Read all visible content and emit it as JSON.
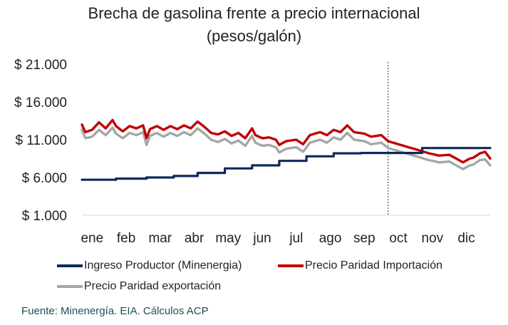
{
  "chart_data": {
    "type": "line",
    "title": "Brecha de gasolina frente a precio internacional",
    "subtitle": "(pesos/galón)",
    "ylim": [
      1000,
      21000
    ],
    "yticks": [
      {
        "value": 1000,
        "label": "$ 1.000"
      },
      {
        "value": 6000,
        "label": "$ 6.000"
      },
      {
        "value": 11000,
        "label": "$ 11.000"
      },
      {
        "value": 16000,
        "label": "$ 16.000"
      },
      {
        "value": 21000,
        "label": "$ 21.000"
      }
    ],
    "xlabels": [
      "ene",
      "feb",
      "mar",
      "abr",
      "may",
      "jun",
      "jul",
      "ago",
      "sep",
      "oct",
      "nov",
      "dic"
    ],
    "x_range": [
      0,
      12
    ],
    "marker_x": 9.0,
    "series": [
      {
        "name": "Ingreso Productor (Minenergia)",
        "color": "#0e2a5c",
        "points": [
          [
            0.0,
            5700
          ],
          [
            1.0,
            5700
          ],
          [
            1.0,
            5850
          ],
          [
            1.9,
            5850
          ],
          [
            1.9,
            6000
          ],
          [
            2.7,
            6000
          ],
          [
            2.7,
            6200
          ],
          [
            3.4,
            6200
          ],
          [
            3.4,
            6600
          ],
          [
            4.2,
            6600
          ],
          [
            4.2,
            7200
          ],
          [
            5.0,
            7200
          ],
          [
            5.0,
            7600
          ],
          [
            5.8,
            7600
          ],
          [
            5.8,
            8200
          ],
          [
            6.6,
            8200
          ],
          [
            6.6,
            8800
          ],
          [
            7.4,
            8800
          ],
          [
            7.4,
            9200
          ],
          [
            8.2,
            9200
          ],
          [
            8.2,
            9250
          ],
          [
            10.0,
            9250
          ],
          [
            10.0,
            9900
          ],
          [
            12.0,
            9900
          ]
        ]
      },
      {
        "name": "Precio Paridad Importación",
        "color": "#c00000",
        "points": [
          [
            0.0,
            13000
          ],
          [
            0.1,
            12000
          ],
          [
            0.3,
            12300
          ],
          [
            0.5,
            13300
          ],
          [
            0.7,
            12500
          ],
          [
            0.9,
            13600
          ],
          [
            1.0,
            12800
          ],
          [
            1.2,
            12100
          ],
          [
            1.4,
            12800
          ],
          [
            1.6,
            12500
          ],
          [
            1.8,
            12900
          ],
          [
            1.9,
            11200
          ],
          [
            2.0,
            12400
          ],
          [
            2.2,
            12800
          ],
          [
            2.4,
            12300
          ],
          [
            2.6,
            12800
          ],
          [
            2.8,
            12400
          ],
          [
            3.0,
            12900
          ],
          [
            3.2,
            12500
          ],
          [
            3.4,
            13400
          ],
          [
            3.6,
            12700
          ],
          [
            3.8,
            11900
          ],
          [
            4.0,
            11700
          ],
          [
            4.2,
            12100
          ],
          [
            4.4,
            11500
          ],
          [
            4.6,
            11900
          ],
          [
            4.8,
            11200
          ],
          [
            5.0,
            12500
          ],
          [
            5.1,
            11600
          ],
          [
            5.3,
            11200
          ],
          [
            5.5,
            11300
          ],
          [
            5.7,
            11000
          ],
          [
            5.8,
            10300
          ],
          [
            6.0,
            10800
          ],
          [
            6.3,
            11000
          ],
          [
            6.5,
            10400
          ],
          [
            6.7,
            11600
          ],
          [
            7.0,
            12000
          ],
          [
            7.2,
            11600
          ],
          [
            7.4,
            12300
          ],
          [
            7.6,
            12000
          ],
          [
            7.8,
            12900
          ],
          [
            8.0,
            12000
          ],
          [
            8.3,
            11800
          ],
          [
            8.5,
            11400
          ],
          [
            8.8,
            11600
          ],
          [
            9.0,
            10800
          ],
          [
            9.3,
            10400
          ],
          [
            9.6,
            10000
          ],
          [
            9.9,
            9600
          ],
          [
            10.2,
            9200
          ],
          [
            10.5,
            8900
          ],
          [
            10.8,
            9000
          ],
          [
            11.0,
            8500
          ],
          [
            11.2,
            8000
          ],
          [
            11.4,
            8500
          ],
          [
            11.5,
            8600
          ],
          [
            11.7,
            9200
          ],
          [
            11.85,
            9400
          ],
          [
            12.0,
            8500
          ]
        ]
      },
      {
        "name": "Precio Paridad exportación",
        "color": "#a6a6a6",
        "points": [
          [
            0.0,
            12300
          ],
          [
            0.1,
            11200
          ],
          [
            0.3,
            11400
          ],
          [
            0.5,
            12300
          ],
          [
            0.7,
            11600
          ],
          [
            0.9,
            12600
          ],
          [
            1.0,
            11800
          ],
          [
            1.2,
            11200
          ],
          [
            1.4,
            11900
          ],
          [
            1.6,
            11600
          ],
          [
            1.8,
            12000
          ],
          [
            1.9,
            10300
          ],
          [
            2.0,
            11500
          ],
          [
            2.2,
            11900
          ],
          [
            2.4,
            11400
          ],
          [
            2.6,
            11900
          ],
          [
            2.8,
            11500
          ],
          [
            3.0,
            12000
          ],
          [
            3.2,
            11600
          ],
          [
            3.4,
            12500
          ],
          [
            3.6,
            11800
          ],
          [
            3.8,
            11000
          ],
          [
            4.0,
            10700
          ],
          [
            4.2,
            11100
          ],
          [
            4.4,
            10500
          ],
          [
            4.6,
            10900
          ],
          [
            4.8,
            10200
          ],
          [
            5.0,
            11500
          ],
          [
            5.1,
            10600
          ],
          [
            5.3,
            10200
          ],
          [
            5.5,
            10300
          ],
          [
            5.7,
            10000
          ],
          [
            5.8,
            9300
          ],
          [
            6.0,
            9800
          ],
          [
            6.3,
            10000
          ],
          [
            6.5,
            9400
          ],
          [
            6.7,
            10600
          ],
          [
            7.0,
            11000
          ],
          [
            7.2,
            10600
          ],
          [
            7.4,
            11300
          ],
          [
            7.6,
            11000
          ],
          [
            7.8,
            11900
          ],
          [
            8.0,
            11000
          ],
          [
            8.3,
            10800
          ],
          [
            8.5,
            10400
          ],
          [
            8.8,
            10600
          ],
          [
            9.0,
            9900
          ],
          [
            9.3,
            9500
          ],
          [
            9.6,
            9100
          ],
          [
            9.9,
            8700
          ],
          [
            10.2,
            8300
          ],
          [
            10.5,
            8000
          ],
          [
            10.8,
            8100
          ],
          [
            11.0,
            7600
          ],
          [
            11.2,
            7100
          ],
          [
            11.4,
            7600
          ],
          [
            11.5,
            7700
          ],
          [
            11.7,
            8300
          ],
          [
            11.85,
            8400
          ],
          [
            12.0,
            7600
          ]
        ]
      }
    ],
    "source": "Fuente: Minenergía. EIA. Cálculos ACP"
  }
}
